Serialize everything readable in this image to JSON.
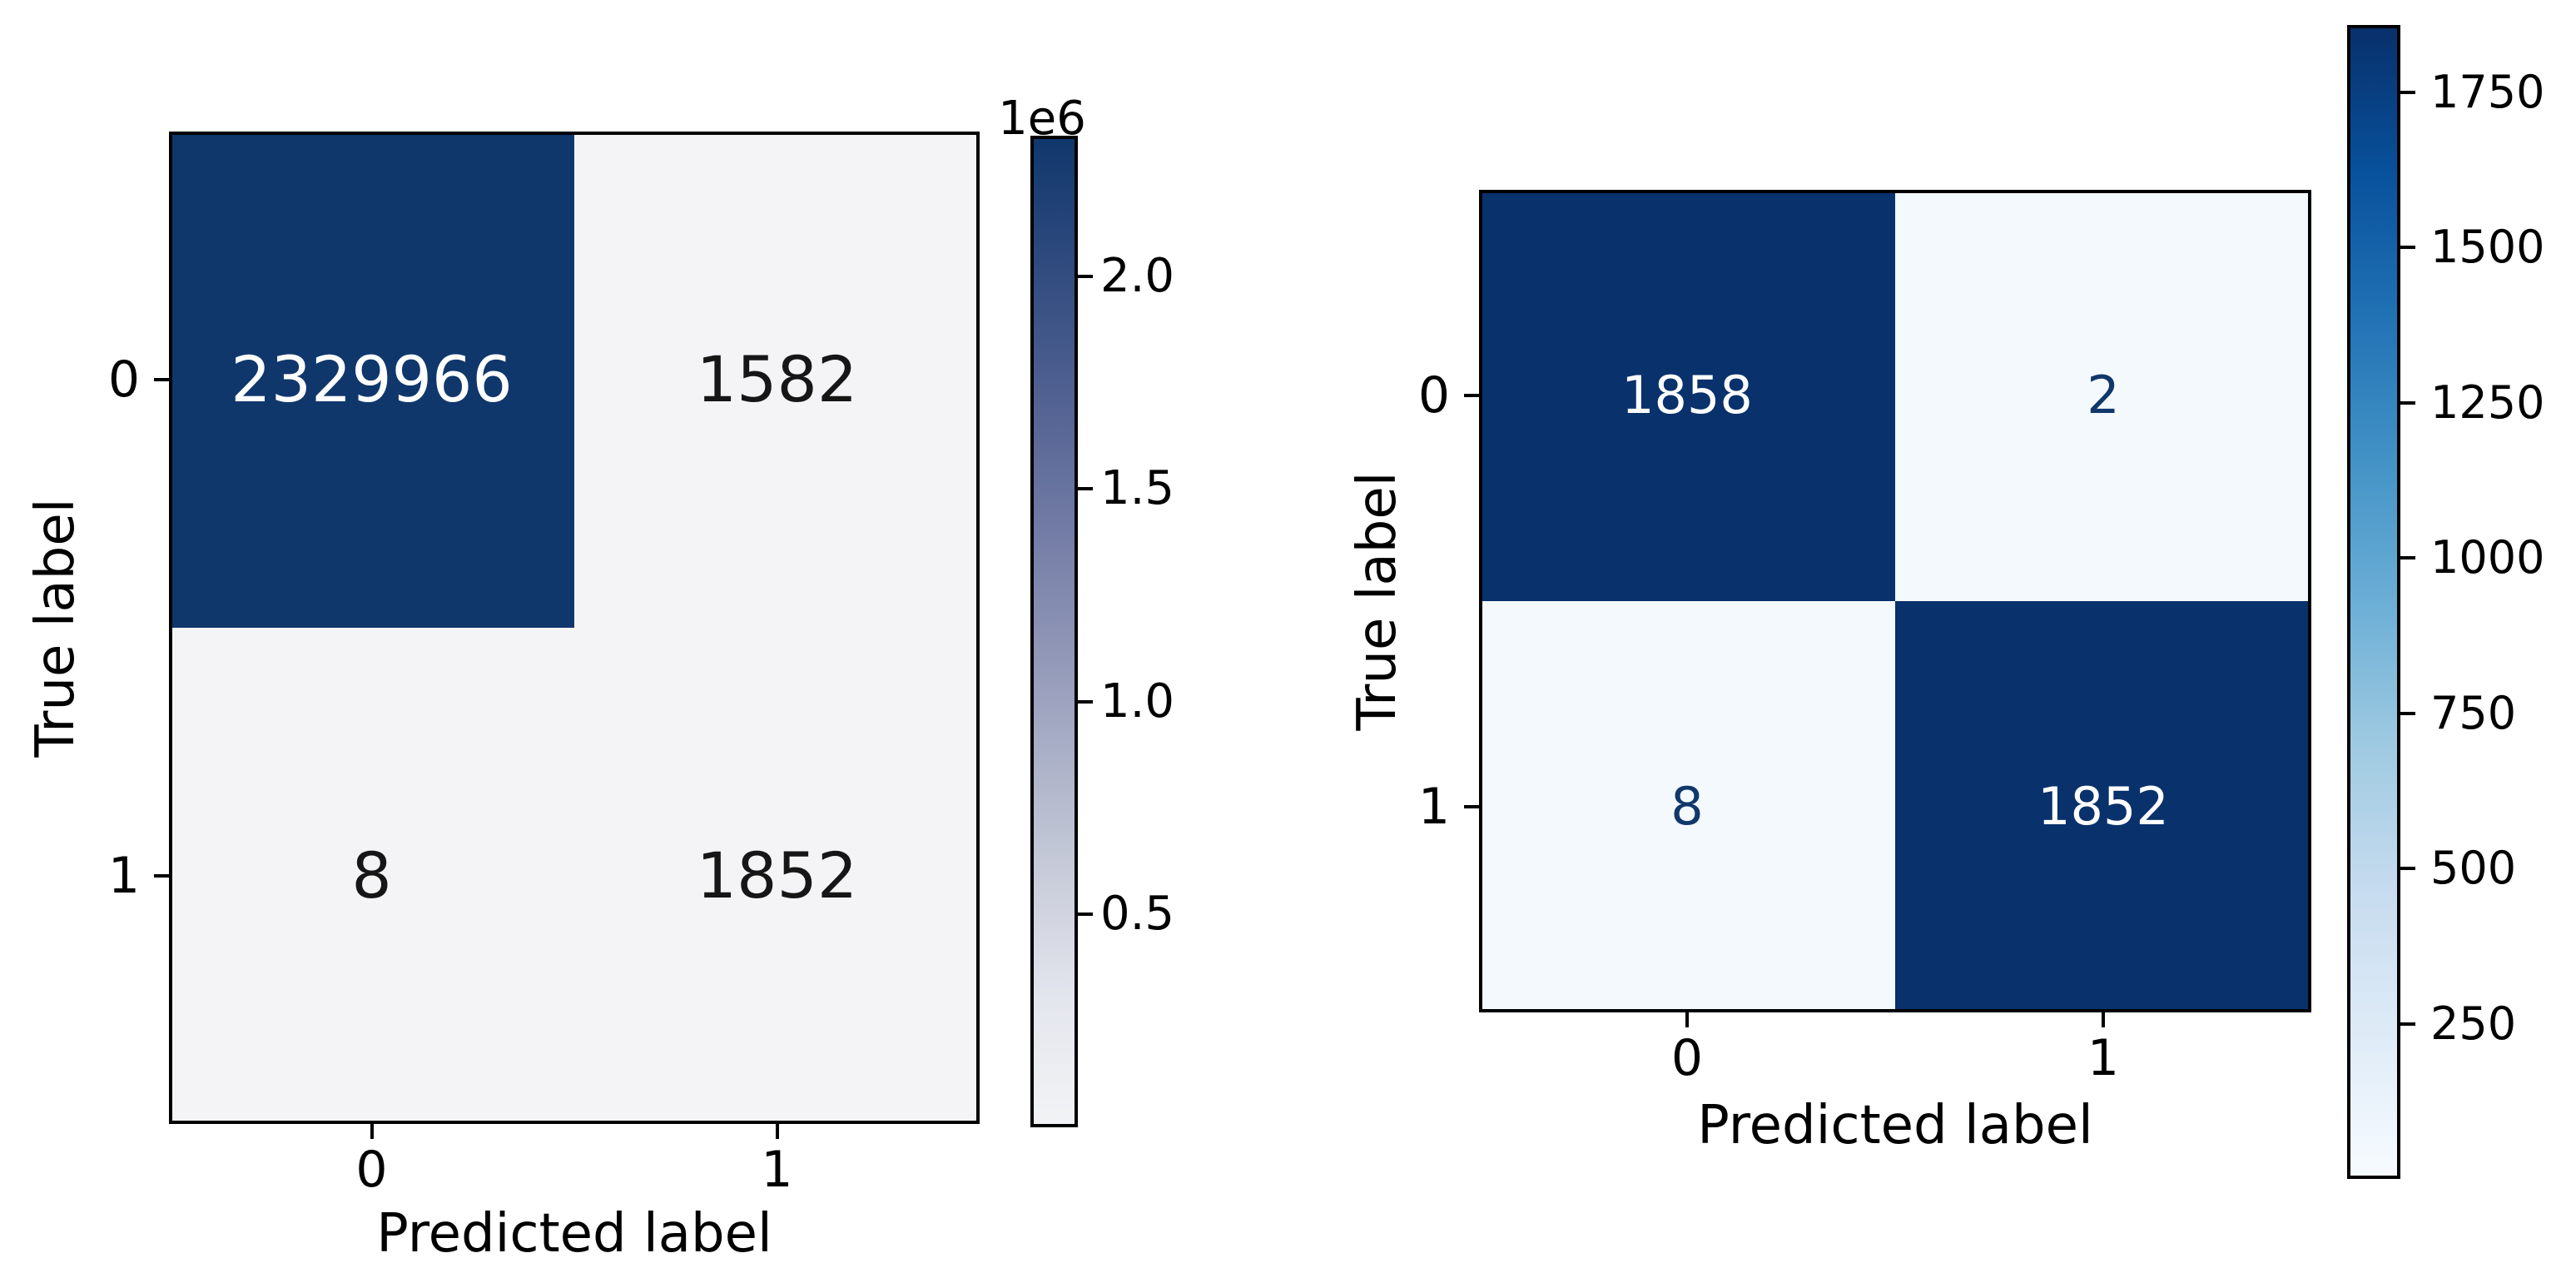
{
  "figure": {
    "background": "#ffffff",
    "description": "Two confusion matrix heatmaps with vertical colorbars"
  },
  "chart_data": [
    {
      "type": "heatmap",
      "name": "confusion-matrix-left",
      "title": "",
      "xlabel": "Predicted label",
      "ylabel": "True label",
      "x_tick_labels": [
        "0",
        "1"
      ],
      "y_tick_labels": [
        "0",
        "1"
      ],
      "matrix": [
        [
          2329966,
          1582
        ],
        [
          8,
          1852
        ]
      ],
      "cell_text": [
        [
          "2329966",
          "1582"
        ],
        [
          "8",
          "1852"
        ]
      ],
      "cell_bg_colors": [
        [
          "#10376c",
          "#f4f4f6"
        ],
        [
          "#f4f4f6",
          "#f4f4f6"
        ]
      ],
      "cell_text_colors": [
        [
          "#ffffff",
          "#161616"
        ],
        [
          "#161616",
          "#161616"
        ]
      ],
      "colorbar": {
        "offset_label": "1e6",
        "tick_labels": [
          "2.0",
          "1.5",
          "1.0",
          "0.5"
        ],
        "tick_values": [
          2000000,
          1500000,
          1000000,
          500000
        ],
        "vmin": 0,
        "vmax": 2329966,
        "gradient_top_to_bottom": [
          "#10376c",
          "#2f4a7e",
          "#4e5f90",
          "#6d77a2",
          "#8b92b4",
          "#aab0c7",
          "#c9cdda",
          "#e4e6ee",
          "#f2f3f5"
        ]
      }
    },
    {
      "type": "heatmap",
      "name": "confusion-matrix-right",
      "title": "",
      "xlabel": "Predicted label",
      "ylabel": "True label",
      "x_tick_labels": [
        "0",
        "1"
      ],
      "y_tick_labels": [
        "0",
        "1"
      ],
      "matrix": [
        [
          1858,
          2
        ],
        [
          8,
          1852
        ]
      ],
      "cell_text": [
        [
          "1858",
          "2"
        ],
        [
          "8",
          "1852"
        ]
      ],
      "cell_bg_colors": [
        [
          "#09316b",
          "#f4f9fe"
        ],
        [
          "#f4f9fe",
          "#09316b"
        ]
      ],
      "cell_text_colors": [
        [
          "#ffffff",
          "#10386b"
        ],
        [
          "#10386b",
          "#ffffff"
        ]
      ],
      "colorbar": {
        "offset_label": "",
        "tick_labels": [
          "1750",
          "1500",
          "1250",
          "1000",
          "750",
          "500",
          "250"
        ],
        "tick_values": [
          1750,
          1500,
          1250,
          1000,
          750,
          500,
          250
        ],
        "vmin": 0,
        "vmax": 1858,
        "gradient_top_to_bottom": [
          "#08306b",
          "#08519c",
          "#2171b5",
          "#4292c6",
          "#6baed6",
          "#9ecae1",
          "#c6dbef",
          "#deebf7",
          "#f7fbff"
        ]
      }
    }
  ]
}
